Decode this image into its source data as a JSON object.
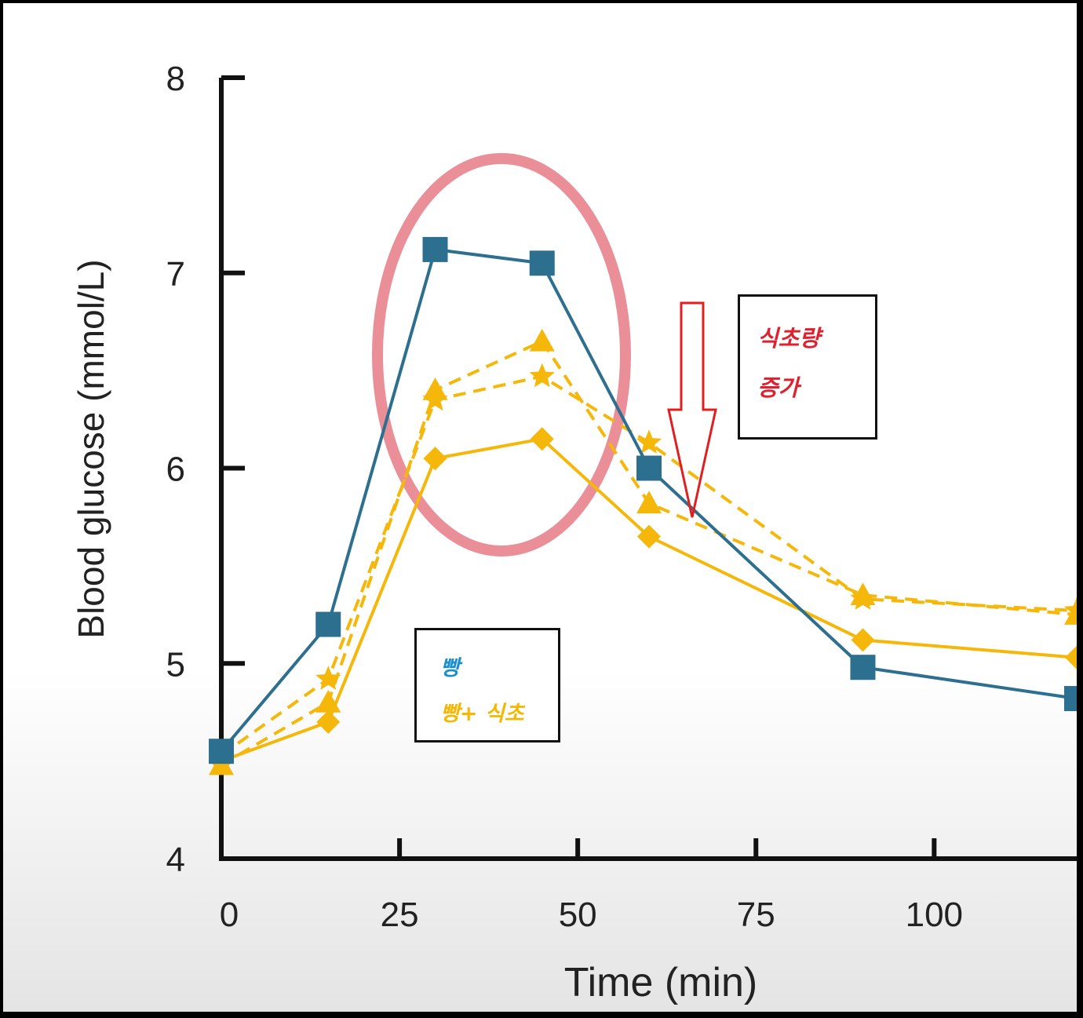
{
  "colors": {
    "bread": "#2d6f8e",
    "vinegar": "#f5b70a",
    "circle": "#ea8e98",
    "arrow": "#e02020",
    "legend_bread": "#1a8fd0",
    "legend_vinegar": "#f5b700",
    "note_text": "#e0202f"
  },
  "chart_data": {
    "type": "line",
    "xlabel": "Time (min)",
    "ylabel": "Blood glucose (mmol/L)",
    "xlim": [
      0,
      120
    ],
    "ylim": [
      4,
      8
    ],
    "xticks": [
      0,
      25,
      50,
      75,
      100
    ],
    "yticks": [
      4,
      5,
      6,
      7,
      8
    ],
    "x": [
      0,
      15,
      30,
      45,
      60,
      90,
      120
    ],
    "series": [
      {
        "name": "빵",
        "style": "solid",
        "marker": "square",
        "color": "#2d6f8e",
        "values": [
          4.55,
          5.2,
          7.12,
          7.05,
          6.0,
          4.98,
          4.82
        ]
      },
      {
        "name": "빵+ 식초",
        "style": "solid",
        "marker": "diamond",
        "color": "#f5b70a",
        "values": [
          4.5,
          4.7,
          6.05,
          6.15,
          5.65,
          5.12,
          5.03
        ]
      },
      {
        "name": "빵+ 식초",
        "style": "dashed",
        "marker": "triangle",
        "color": "#f5b70a",
        "values": [
          4.48,
          4.8,
          6.4,
          6.65,
          5.82,
          5.35,
          5.25
        ]
      },
      {
        "name": "빵+ 식초",
        "style": "dashed",
        "marker": "star",
        "color": "#f5b70a",
        "values": [
          4.53,
          4.92,
          6.35,
          6.47,
          6.13,
          5.33,
          5.27
        ]
      }
    ]
  },
  "legend": {
    "bread": "빵",
    "bread_vinegar": "빵+ 식초"
  },
  "note": {
    "line1": "식초량",
    "line2": "증가"
  }
}
